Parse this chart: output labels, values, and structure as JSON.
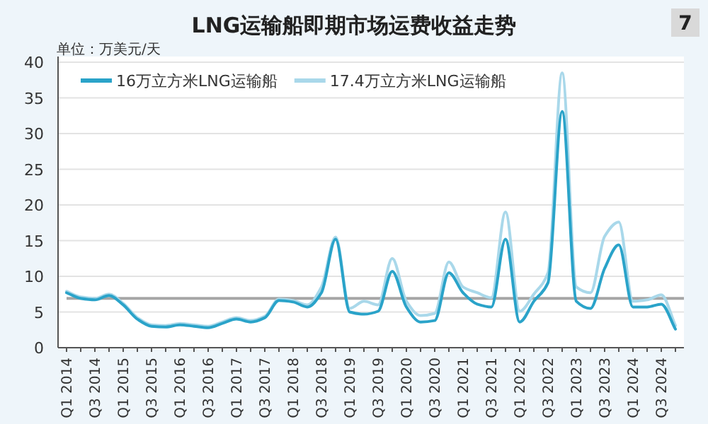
{
  "chart_data": {
    "type": "line",
    "title": "LNG运输船即期市场运费收益走势",
    "ylabel": "单位：万美元/天",
    "annotations": [
      "7"
    ],
    "categories": [
      "Q1 2014",
      null,
      "Q3 2014",
      null,
      "Q1 2015",
      null,
      "Q3 2015",
      null,
      "Q1 2016",
      null,
      "Q3 2016",
      null,
      "Q1 2017",
      null,
      "Q3 2017",
      null,
      "Q1 2018",
      null,
      "Q3 2018",
      null,
      "Q1 2019",
      null,
      "Q3 2019",
      null,
      "Q1 2020",
      null,
      "Q3 2020",
      null,
      "Q1 2021",
      null,
      "Q3 2021",
      null,
      "Q1 2022",
      null,
      "Q3 2022",
      null,
      "Q1 2023",
      null,
      "Q3 2023",
      null,
      "Q1 2024",
      null,
      "Q3 2024",
      null
    ],
    "series": [
      {
        "name": "16万立方米LNG运输船",
        "color": "#2aa3c9",
        "values": [
          7.7,
          6.9,
          6.7,
          7.3,
          6.0,
          4.0,
          3.0,
          2.9,
          3.2,
          3.0,
          2.8,
          3.4,
          4.0,
          3.6,
          4.2,
          6.6,
          6.4,
          5.7,
          7.7,
          15.2,
          5.0,
          4.7,
          5.1,
          10.7,
          5.7,
          3.6,
          3.8,
          10.5,
          7.7,
          6.1,
          5.7,
          15.2,
          3.6,
          6.5,
          9.1,
          33.1,
          6.5,
          5.5,
          11.1,
          14.4,
          5.7,
          5.7,
          6.1,
          2.6
        ]
      },
      {
        "name": "17.4万立方米LNG运输船",
        "color": "#a9d8ea",
        "values": [
          7.9,
          7.1,
          6.9,
          7.5,
          6.2,
          4.2,
          3.2,
          3.1,
          3.4,
          3.2,
          3.0,
          3.6,
          4.2,
          3.8,
          4.4,
          6.8,
          6.6,
          6.0,
          8.5,
          15.5,
          5.5,
          6.5,
          6.0,
          12.5,
          6.5,
          4.5,
          4.8,
          12.0,
          8.5,
          7.7,
          7.0,
          19.0,
          5.1,
          7.5,
          10.5,
          38.5,
          8.5,
          7.7,
          15.6,
          17.6,
          6.5,
          6.7,
          7.4,
          3.1
        ]
      }
    ],
    "ylim": [
      0,
      40
    ],
    "yticks": [
      0,
      5,
      10,
      15,
      20,
      25,
      30,
      35,
      40
    ],
    "grid": "y",
    "legend": "top left",
    "marker": "none",
    "line_style": "solid",
    "ref_lines": [
      {
        "axis": "y",
        "value": 6.9,
        "color": "#a6a6a6"
      }
    ]
  }
}
